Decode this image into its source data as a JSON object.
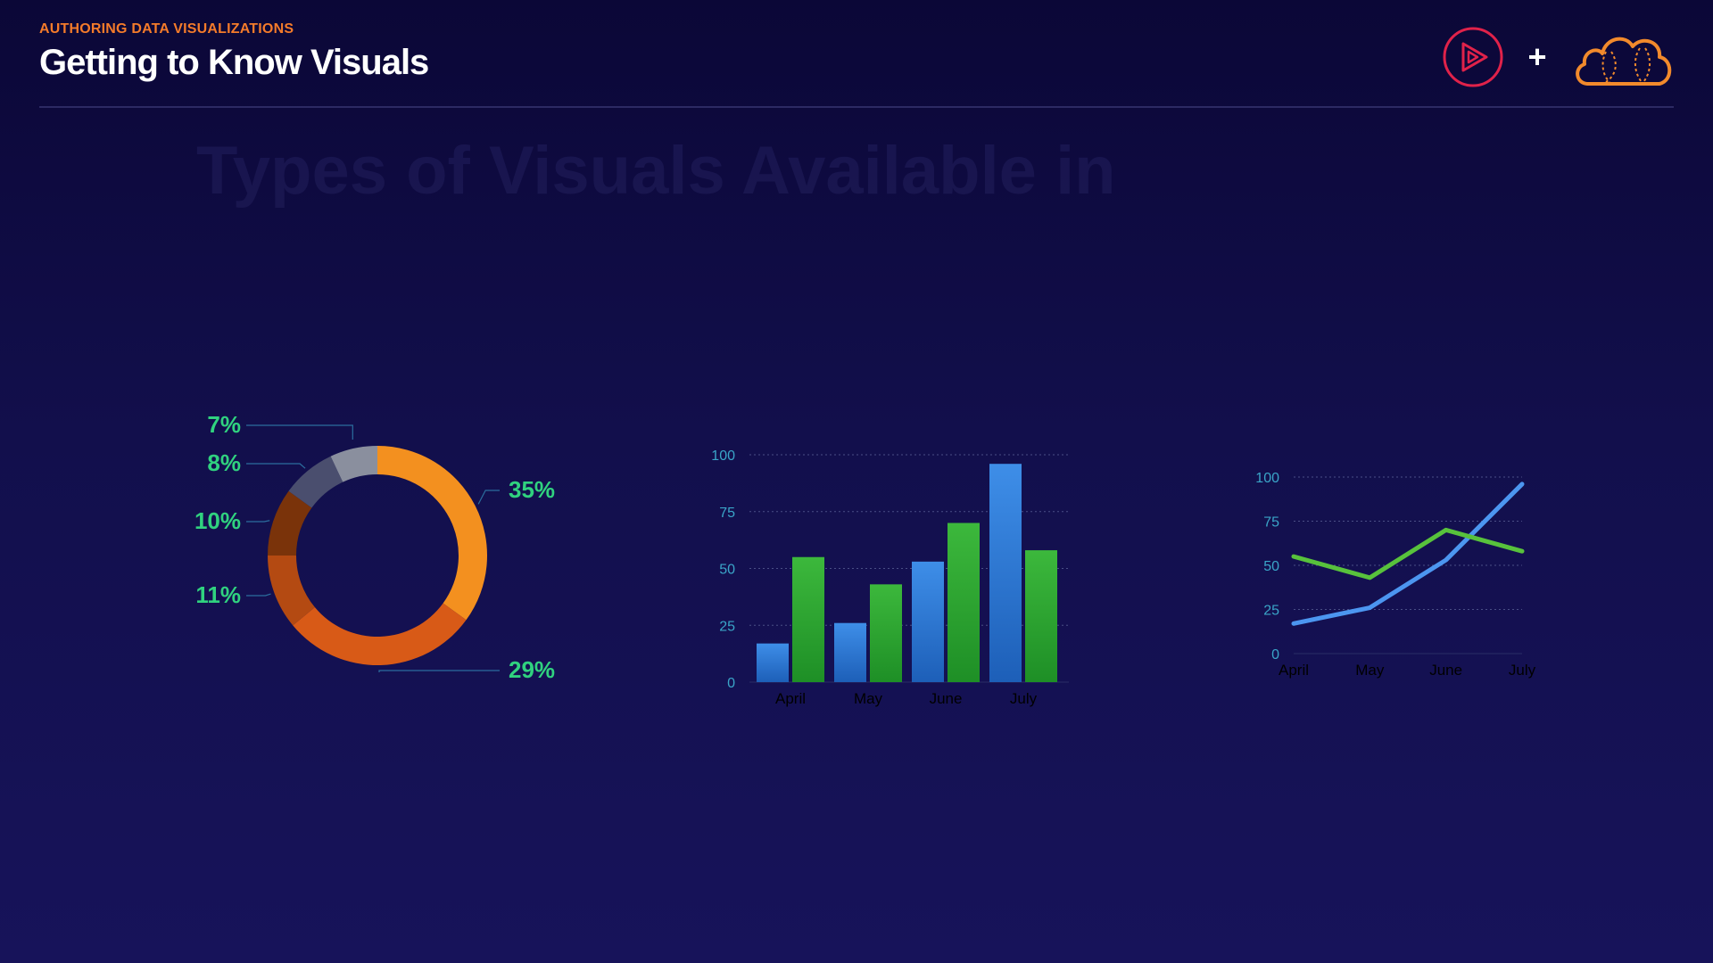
{
  "header": {
    "eyebrow": "AUTHORING DATA VISUALIZATIONS",
    "title": "Getting to Know Visuals"
  },
  "brand": {
    "plus": "+",
    "play_logo_color": "#e0224a",
    "cloud_logo_color": "#f28a2c"
  },
  "ghost": {
    "heading": "Types of Visuals Available in",
    "subheading": ""
  },
  "colors": {
    "background": "#130f4a",
    "accent": "#f47b2a",
    "label_green": "#30d27f",
    "tick_blue": "#3aa5c8"
  },
  "chart_data": [
    {
      "type": "pie",
      "donut": true,
      "slices": [
        {
          "label": "35%",
          "value": 35,
          "color": "#f3901f"
        },
        {
          "label": "29%",
          "value": 29,
          "color": "#d85a17"
        },
        {
          "label": "11%",
          "value": 11,
          "color": "#b44a12"
        },
        {
          "label": "10%",
          "value": 10,
          "color": "#7a330a"
        },
        {
          "label": "8%",
          "value": 8,
          "color": "#4a4e6e"
        },
        {
          "label": "7%",
          "value": 7,
          "color": "#8a8f9e"
        }
      ]
    },
    {
      "type": "bar",
      "categories": [
        "April",
        "May",
        "June",
        "July"
      ],
      "series": [
        {
          "values": [
            17,
            26,
            53,
            96
          ],
          "color": "#3e8ee8"
        },
        {
          "values": [
            55,
            43,
            70,
            58
          ],
          "color": "#3cb83c"
        }
      ],
      "yticks": [
        "0",
        "25",
        "50",
        "75",
        "100"
      ],
      "ylim": [
        0,
        100
      ],
      "grid": true
    },
    {
      "type": "line",
      "categories": [
        "April",
        "May",
        "June",
        "July"
      ],
      "series": [
        {
          "values": [
            17,
            26,
            53,
            96
          ],
          "color": "#4c96f0"
        },
        {
          "values": [
            55,
            43,
            70,
            58
          ],
          "color": "#58c23c"
        }
      ],
      "yticks": [
        "0",
        "25",
        "50",
        "75",
        "100"
      ],
      "ylim": [
        0,
        100
      ],
      "grid": true
    }
  ]
}
